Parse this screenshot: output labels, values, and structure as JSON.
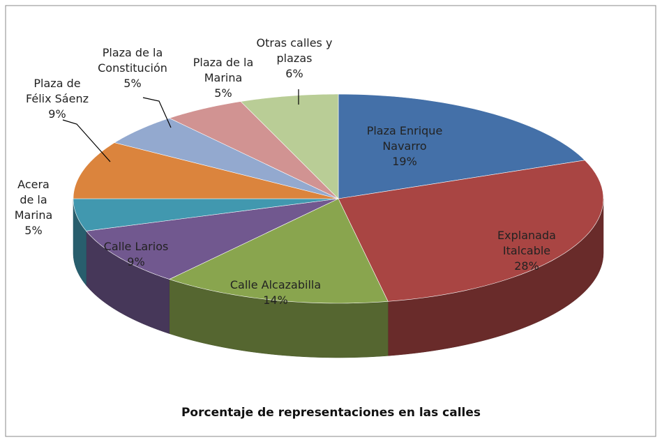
{
  "chart_data": {
    "type": "pie3d",
    "title": "Porcentaje de representaciones en las calles",
    "categories": [
      "Plaza Enrique Navarro",
      "Explanada Italcable",
      "Calle Alcazabilla",
      "Calle Larios",
      "Acera de la Marina",
      "Plaza de Félix Sáenz",
      "Plaza de la Constitución",
      "Plaza de la Marina",
      "Otras calles y plazas"
    ],
    "values": [
      19,
      28,
      14,
      9,
      5,
      9,
      5,
      5,
      6
    ],
    "value_labels": [
      "19%",
      "28%",
      "14%",
      "9%",
      "5%",
      "9%",
      "5%",
      "5%",
      "6%"
    ],
    "colors": [
      "#4470a8",
      "#a94543",
      "#89a54e",
      "#71588f",
      "#4198af",
      "#db843d",
      "#93a9cf",
      "#d19392",
      "#b9cd96"
    ]
  }
}
